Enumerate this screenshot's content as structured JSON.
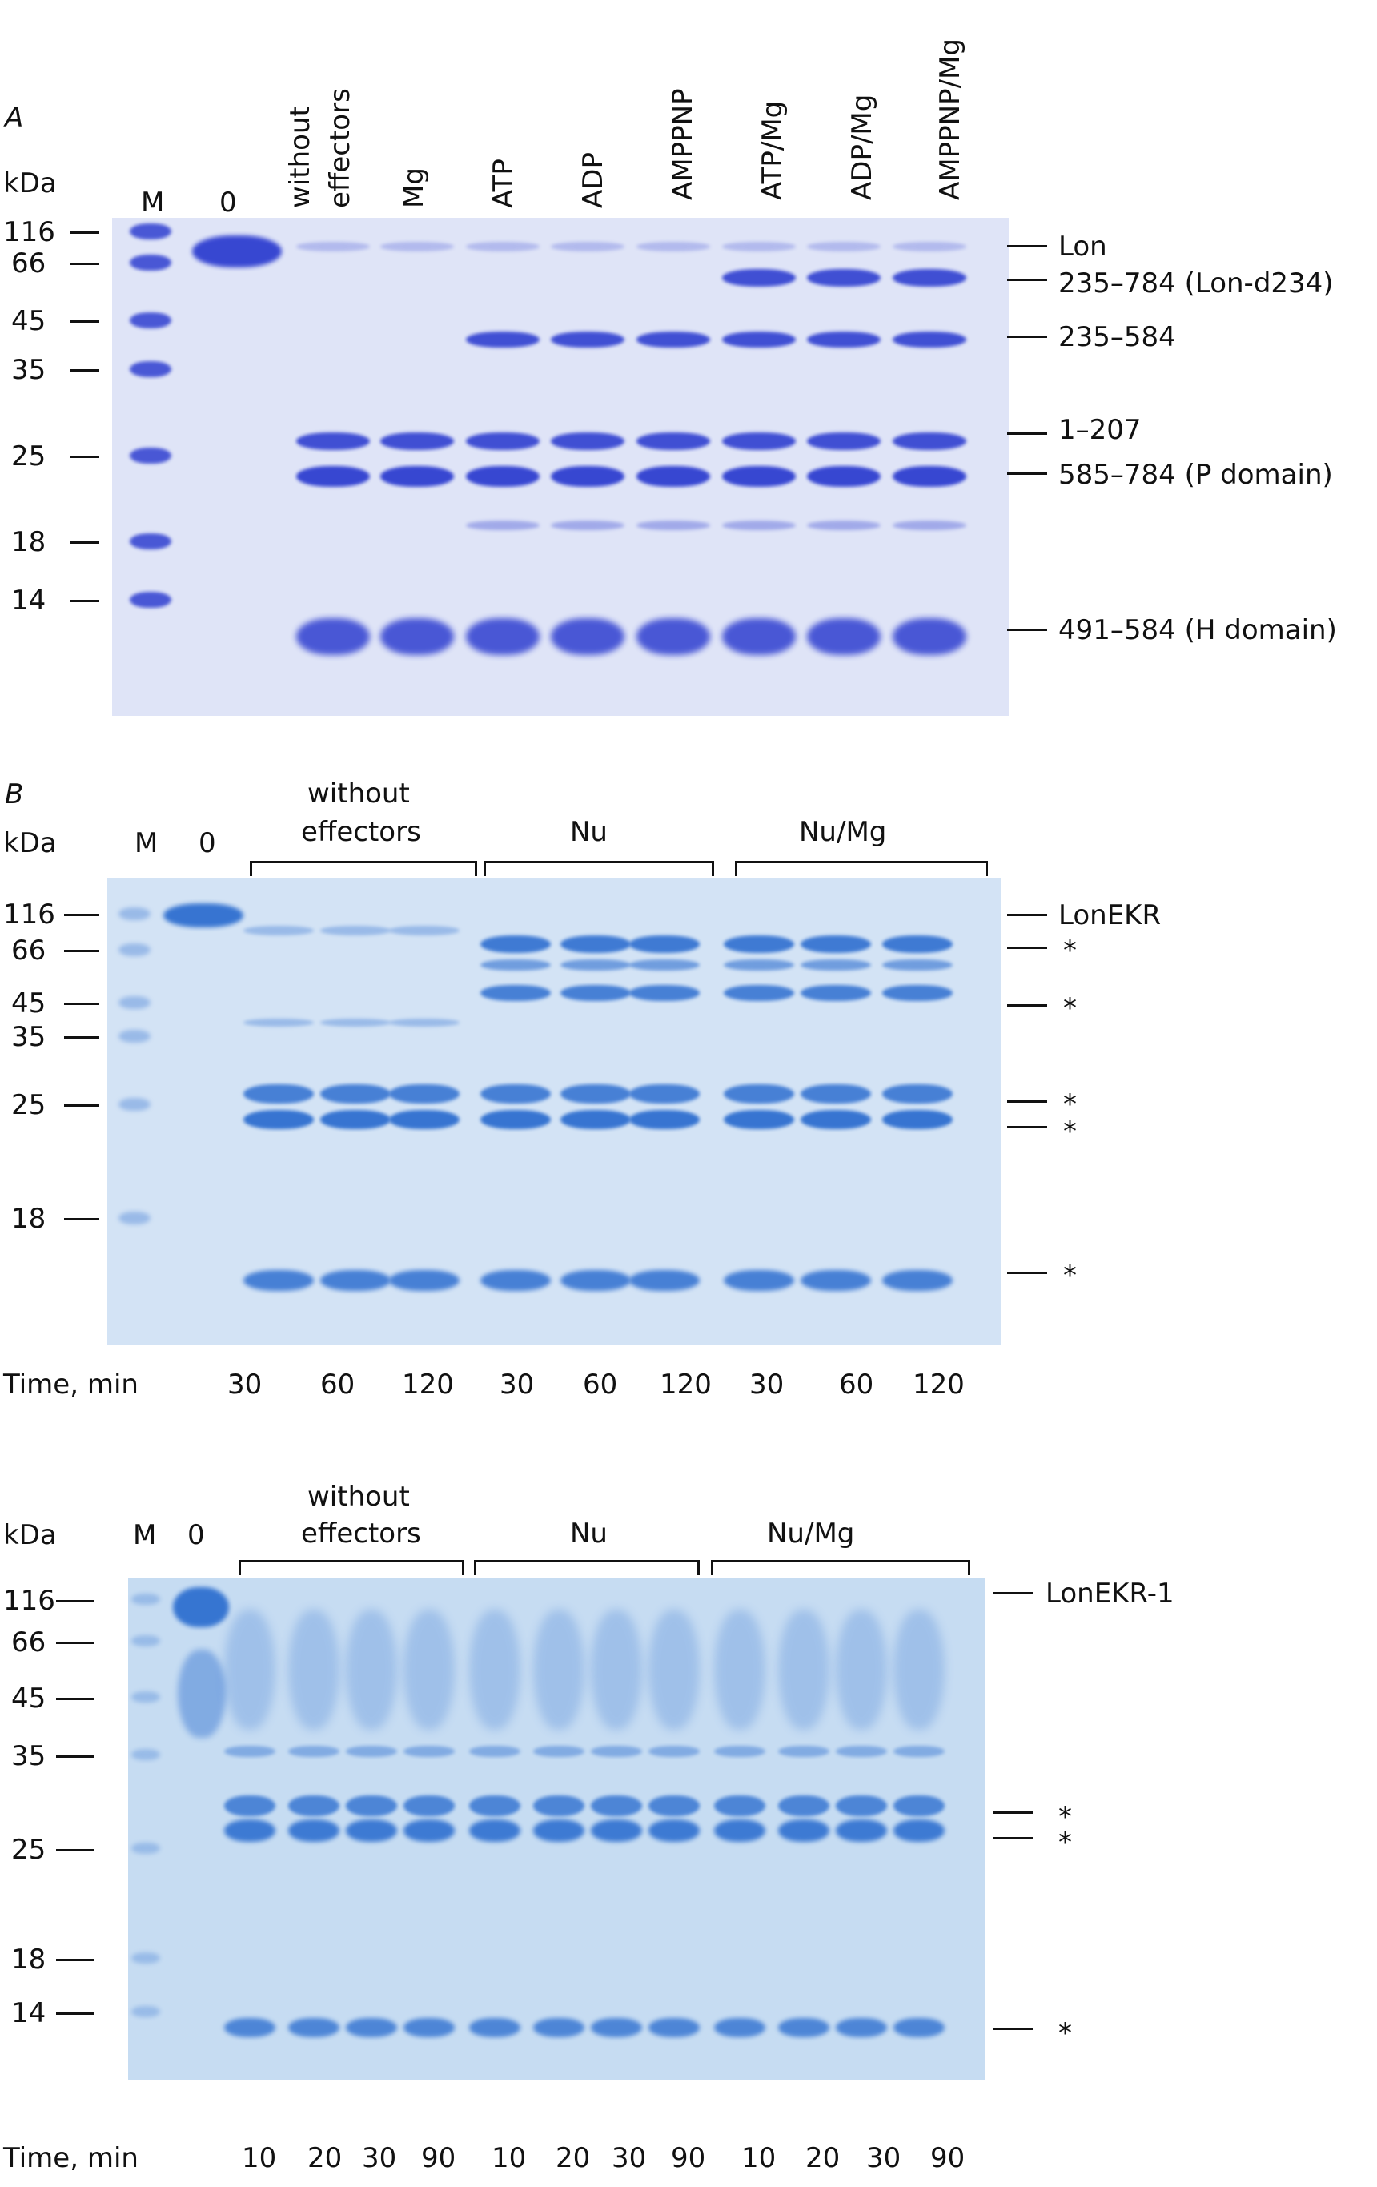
{
  "panelA": {
    "label": "A",
    "kda": "kDa",
    "markers": [
      "116",
      "66",
      "45",
      "35",
      "25",
      "18",
      "14"
    ],
    "lane_m": "M",
    "lane_0": "0",
    "lanes": [
      "without",
      "effectors",
      "Mg",
      "ATP",
      "ADP",
      "AMPPNP",
      "ATP/Mg",
      "ADP/Mg",
      "AMPPNP/Mg"
    ],
    "bands": [
      "Lon",
      "235–784 (Lon-d234)",
      "235–584",
      "1–207",
      "585–784 (P domain)",
      "491–584 (H domain)"
    ],
    "gel_color": "#dfe4f7",
    "band_color": "#2f3fd0"
  },
  "panelB": {
    "label": "B",
    "kda": "kDa",
    "markers": [
      "116",
      "66",
      "45",
      "35",
      "25",
      "18"
    ],
    "lane_m": "M",
    "lane_0": "0",
    "groups": [
      "without",
      "effectors",
      "Nu",
      "Nu/Mg"
    ],
    "right": [
      "LonEKR",
      "*",
      "*",
      "*",
      "*",
      "*"
    ],
    "time_label": "Time, min",
    "times": [
      "30",
      "60",
      "120",
      "30",
      "60",
      "120",
      "30",
      "60",
      "120"
    ],
    "gel_color": "#d3e3f5",
    "band_color": "#2f6fd0"
  },
  "panelC": {
    "kda": "kDa",
    "markers": [
      "116",
      "66",
      "45",
      "35",
      "25",
      "18",
      "14"
    ],
    "lane_m": "M",
    "lane_0": "0",
    "groups": [
      "without",
      "effectors",
      "Nu",
      "Nu/Mg"
    ],
    "right": [
      "LonEKR-1",
      "*",
      "*",
      "*"
    ],
    "time_label": "Time, min",
    "times": [
      "10",
      "20",
      "30",
      "90",
      "10",
      "20",
      "30",
      "90",
      "10",
      "20",
      "30",
      "90"
    ],
    "gel_color": "#c6dcf2",
    "band_color": "#2f70d0"
  }
}
